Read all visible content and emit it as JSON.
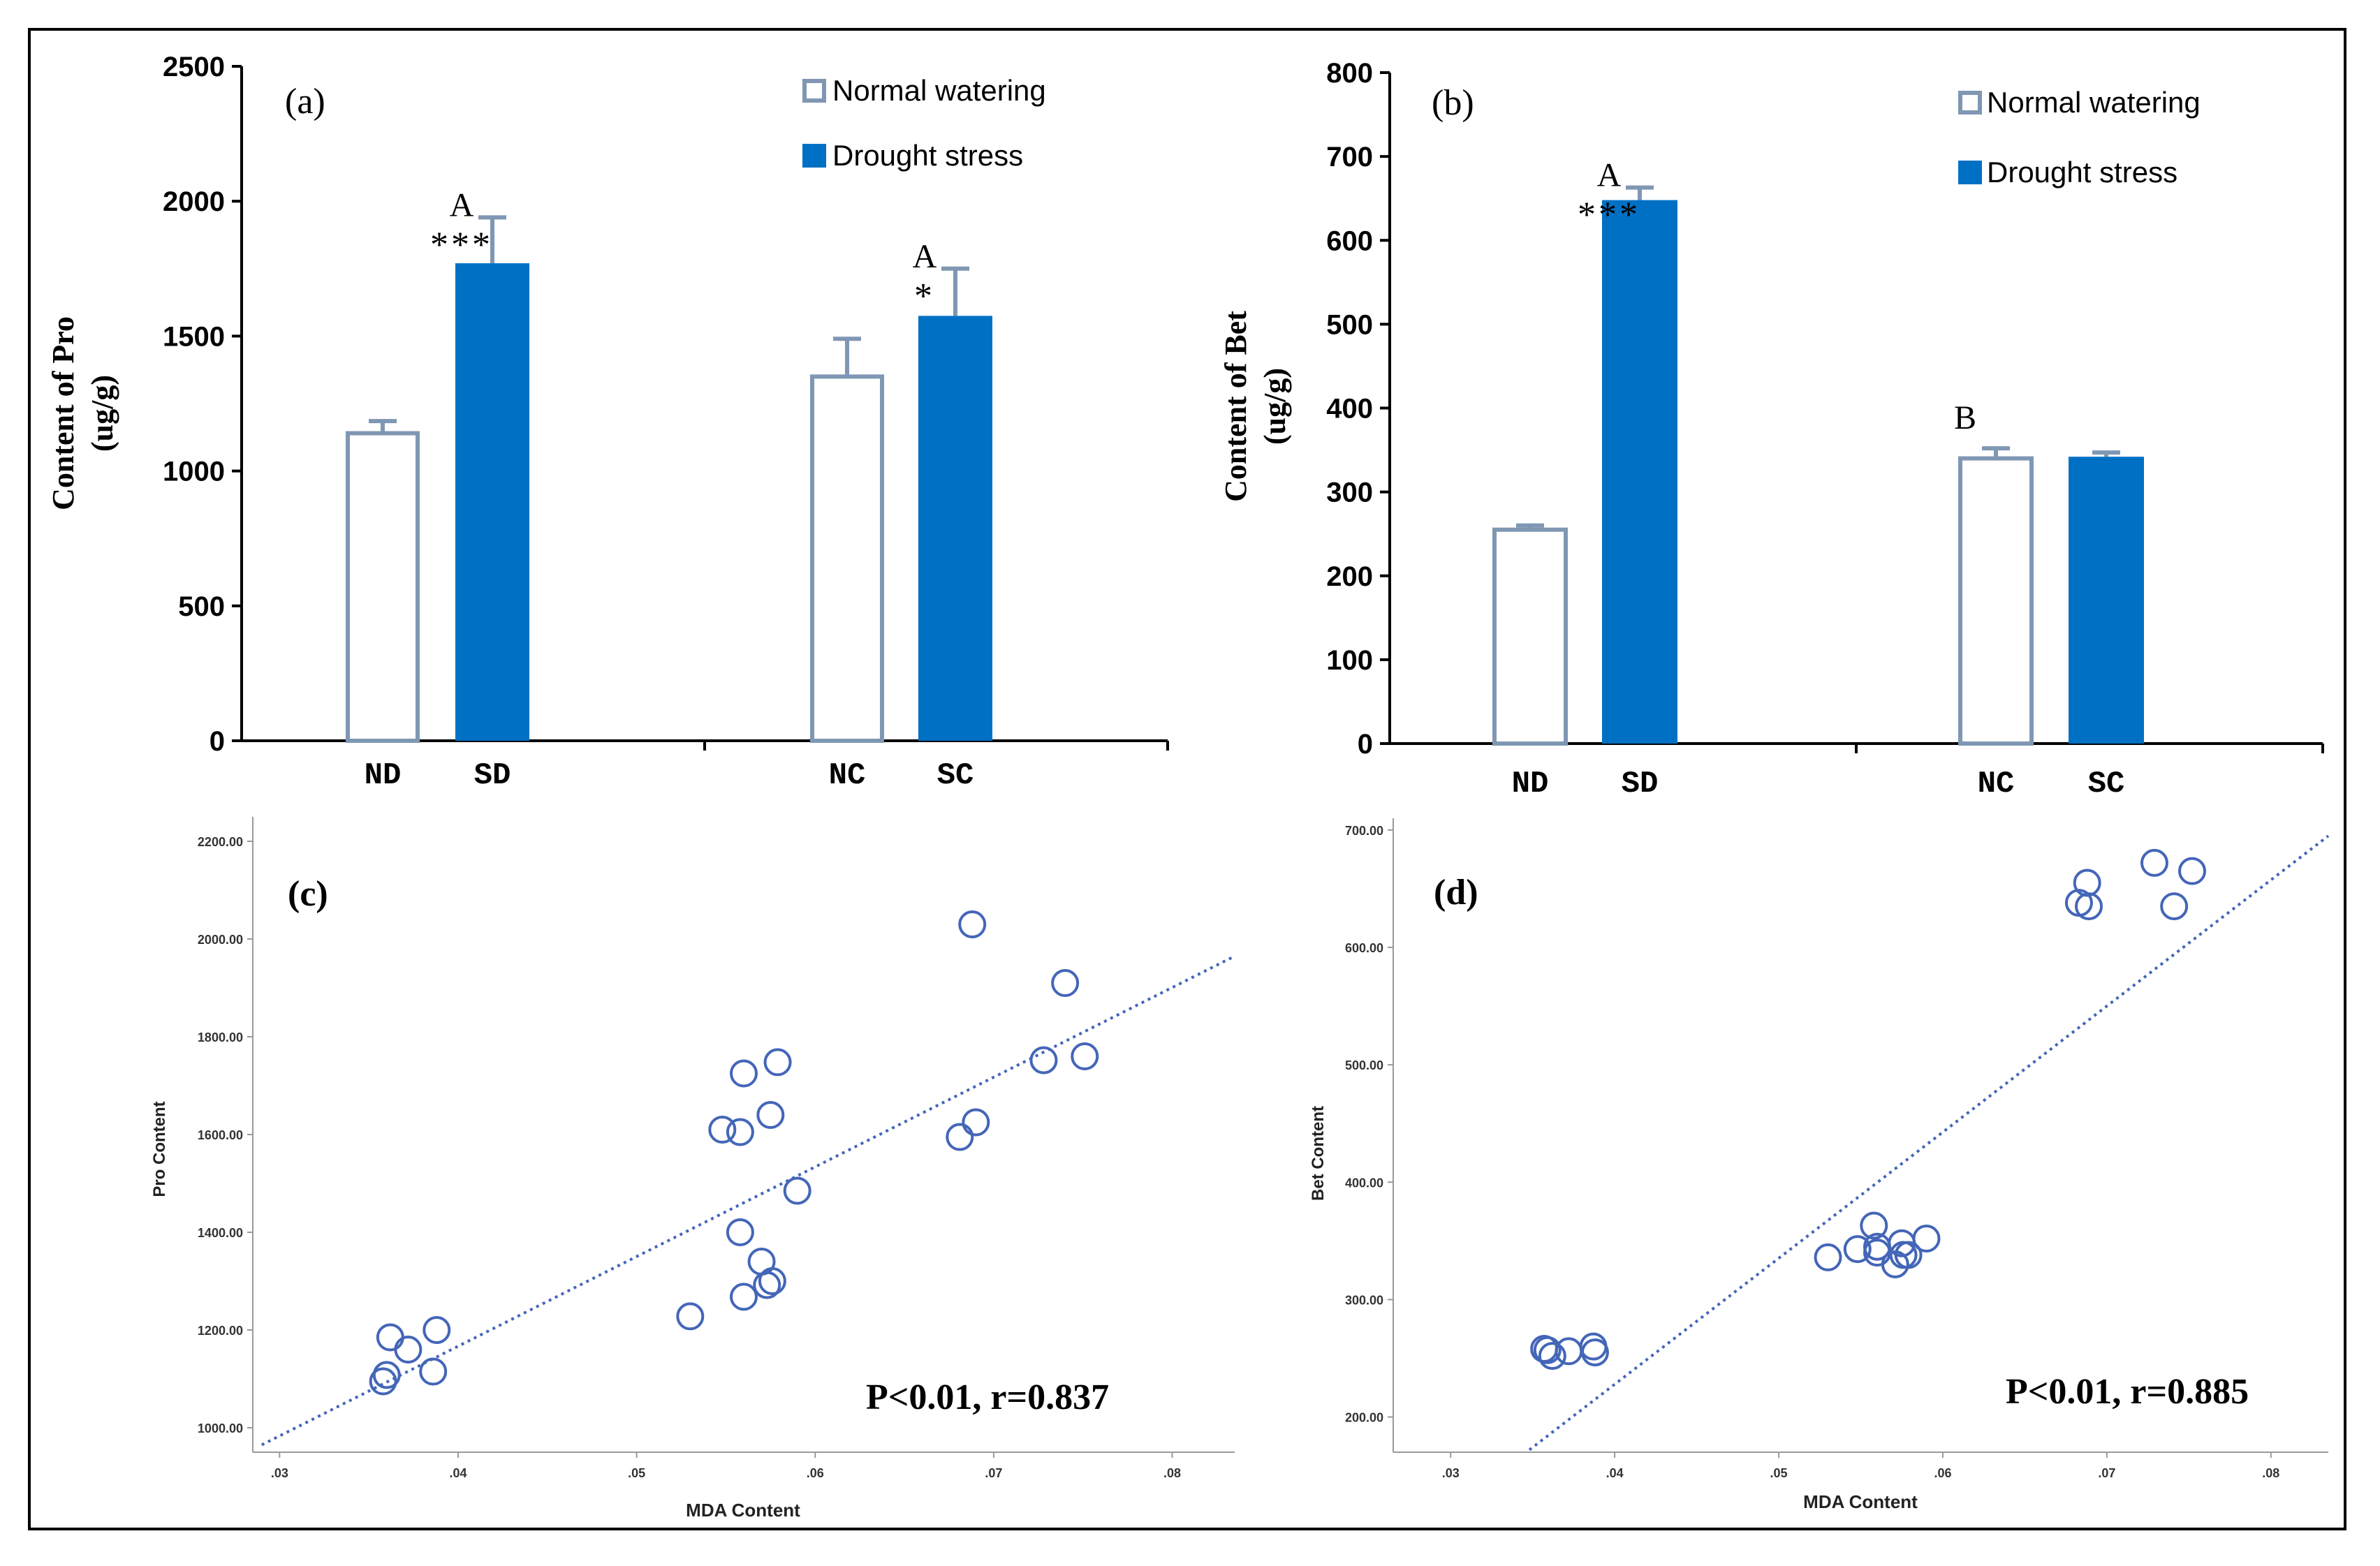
{
  "colors": {
    "normal_stroke": "#7f97b3",
    "drought_fill": "#0070c4",
    "scatter_stroke": "#4466b8",
    "fit_line": "#4466b8",
    "axis": "#000000"
  },
  "chart_data": [
    {
      "id": "a",
      "type": "bar",
      "panel_label": "(a)",
      "ylabel": "Content of Pro",
      "ylabel_unit": "(ug/g)",
      "ylim": [
        0,
        2500
      ],
      "yticks": [
        0,
        500,
        1000,
        1500,
        2000,
        2500
      ],
      "legend": {
        "position": "top-right",
        "entries": [
          "Normal watering",
          "Drought stress"
        ]
      },
      "bars": [
        {
          "category": "ND",
          "series": "Normal watering",
          "value": 1140,
          "error": 45,
          "annotation": "",
          "sig": ""
        },
        {
          "category": "SD",
          "series": "Drought stress",
          "value": 1770,
          "error": 170,
          "annotation": "A",
          "sig": "***"
        },
        {
          "category": "NC",
          "series": "Normal watering",
          "value": 1350,
          "error": 140,
          "annotation": "",
          "sig": ""
        },
        {
          "category": "SC",
          "series": "Drought stress",
          "value": 1575,
          "error": 175,
          "annotation": "A",
          "sig": "*"
        }
      ]
    },
    {
      "id": "b",
      "type": "bar",
      "panel_label": "(b)",
      "ylabel": "Content of Bet",
      "ylabel_unit": "(ug/g)",
      "ylim": [
        0,
        800
      ],
      "yticks": [
        0,
        100,
        200,
        300,
        400,
        500,
        600,
        700,
        800
      ],
      "legend": {
        "position": "top-right",
        "entries": [
          "Normal watering",
          "Drought stress"
        ]
      },
      "bars": [
        {
          "category": "ND",
          "series": "Normal watering",
          "value": 255,
          "error": 5,
          "annotation": "",
          "sig": ""
        },
        {
          "category": "SD",
          "series": "Drought stress",
          "value": 648,
          "error": 15,
          "annotation": "A",
          "sig": "***"
        },
        {
          "category": "NC",
          "series": "Normal watering",
          "value": 340,
          "error": 12,
          "annotation": "B",
          "sig": ""
        },
        {
          "category": "SC",
          "series": "Drought stress",
          "value": 342,
          "error": 5,
          "annotation": "",
          "sig": ""
        }
      ]
    },
    {
      "id": "c",
      "type": "scatter",
      "panel_label": "(c)",
      "xlabel": "MDA Content",
      "ylabel": "Pro Content",
      "xlim": [
        0.0285,
        0.0835
      ],
      "ylim": [
        950,
        2250
      ],
      "xticks": [
        0.03,
        0.04,
        0.05,
        0.06,
        0.07,
        0.08
      ],
      "xtick_labels": [
        ".03",
        ".04",
        ".05",
        ".06",
        ".07",
        ".08"
      ],
      "yticks": [
        1000,
        1200,
        1400,
        1600,
        1800,
        2000,
        2200
      ],
      "ytick_labels": [
        "1000.00",
        "1200.00",
        "1400.00",
        "1600.00",
        "1800.00",
        "2000.00",
        "2200.00"
      ],
      "annotation": "P<0.01, r=0.837",
      "fit_line": {
        "x": [
          0.029,
          0.0835
        ],
        "y": [
          965,
          1965
        ]
      },
      "points": [
        [
          0.0358,
          1095
        ],
        [
          0.036,
          1108
        ],
        [
          0.0362,
          1185
        ],
        [
          0.0372,
          1160
        ],
        [
          0.0386,
          1115
        ],
        [
          0.0388,
          1200
        ],
        [
          0.053,
          1228
        ],
        [
          0.0548,
          1610
        ],
        [
          0.0558,
          1605
        ],
        [
          0.0558,
          1400
        ],
        [
          0.056,
          1268
        ],
        [
          0.056,
          1725
        ],
        [
          0.057,
          1340
        ],
        [
          0.0573,
          1292
        ],
        [
          0.0575,
          1640
        ],
        [
          0.0576,
          1300
        ],
        [
          0.0579,
          1748
        ],
        [
          0.059,
          1485
        ],
        [
          0.0681,
          1595
        ],
        [
          0.0688,
          2030
        ],
        [
          0.069,
          1625
        ],
        [
          0.0728,
          1752
        ],
        [
          0.074,
          1910
        ],
        [
          0.0751,
          1760
        ]
      ]
    },
    {
      "id": "d",
      "type": "scatter",
      "panel_label": "(d)",
      "xlabel": "MDA Content",
      "ylabel": "Bet Content",
      "xlim": [
        0.0265,
        0.0835
      ],
      "ylim": [
        170,
        710
      ],
      "xticks": [
        0.03,
        0.04,
        0.05,
        0.06,
        0.07,
        0.08
      ],
      "xtick_labels": [
        ".03",
        ".04",
        ".05",
        ".06",
        ".07",
        ".08"
      ],
      "yticks": [
        200,
        300,
        400,
        500,
        600,
        700
      ],
      "ytick_labels": [
        "200.00",
        "300.00",
        "400.00",
        "500.00",
        "600.00",
        "700.00"
      ],
      "annotation": "P<0.01, r=0.885",
      "fit_line": {
        "x": [
          0.0348,
          0.0835
        ],
        "y": [
          172,
          695
        ]
      },
      "points": [
        [
          0.0357,
          258
        ],
        [
          0.0359,
          257
        ],
        [
          0.0362,
          252
        ],
        [
          0.0372,
          256
        ],
        [
          0.0387,
          260
        ],
        [
          0.0388,
          255
        ],
        [
          0.053,
          336
        ],
        [
          0.0548,
          343
        ],
        [
          0.0558,
          363
        ],
        [
          0.056,
          345
        ],
        [
          0.056,
          340
        ],
        [
          0.0571,
          330
        ],
        [
          0.0575,
          348
        ],
        [
          0.0576,
          338
        ],
        [
          0.0579,
          338
        ],
        [
          0.059,
          352
        ],
        [
          0.0683,
          638
        ],
        [
          0.0688,
          655
        ],
        [
          0.0689,
          635
        ],
        [
          0.0729,
          672
        ],
        [
          0.0741,
          635
        ],
        [
          0.0752,
          665
        ]
      ]
    }
  ]
}
